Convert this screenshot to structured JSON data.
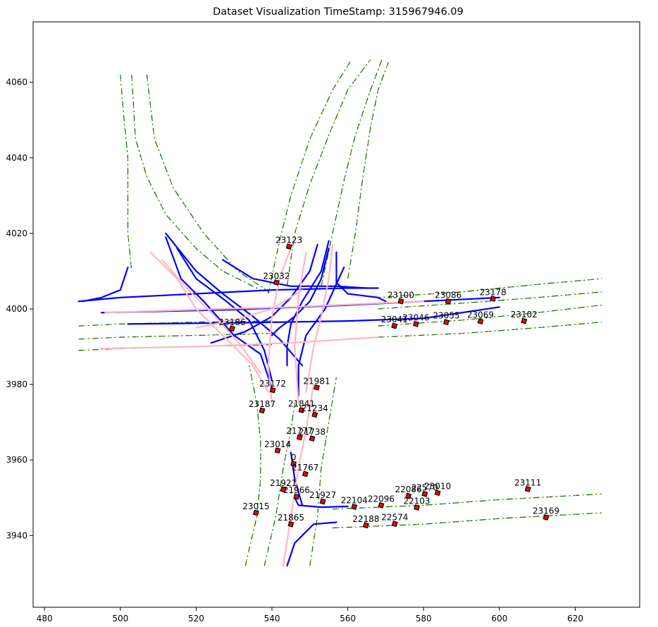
{
  "chart_data": {
    "type": "scatter",
    "title": "Dataset Visualization TimeStamp: 315967946.09",
    "xlabel": "",
    "ylabel": "",
    "xlim": [
      477,
      637
    ],
    "ylim": [
      3921,
      4076
    ],
    "xticks": [
      480,
      500,
      520,
      540,
      560,
      580,
      600,
      620
    ],
    "yticks": [
      3940,
      3960,
      3980,
      4000,
      4020,
      4040,
      4060
    ],
    "colors": {
      "lane_boundary": "#006400",
      "lane_marker": "#cccc00",
      "centerline_blue": "#0000ff",
      "centerline_pink": "#ffb6c1",
      "agent_fill": "#ff0000",
      "agent_edge": "#000000"
    },
    "agents": [
      {
        "id": "23123",
        "x": 544.5,
        "y": 4016.5
      },
      {
        "id": "23032",
        "x": 541.2,
        "y": 4007.0
      },
      {
        "id": "23186",
        "x": 529.5,
        "y": 3994.8
      },
      {
        "id": "23100",
        "x": 574.0,
        "y": 4002.0
      },
      {
        "id": "23086",
        "x": 586.5,
        "y": 4002.0
      },
      {
        "id": "23178",
        "x": 598.3,
        "y": 4002.7
      },
      {
        "id": "23041",
        "x": 572.3,
        "y": 3995.5
      },
      {
        "id": "23046",
        "x": 578.0,
        "y": 3996.0
      },
      {
        "id": "23055",
        "x": 586.0,
        "y": 3996.5
      },
      {
        "id": "23069",
        "x": 595.0,
        "y": 3996.7
      },
      {
        "id": "23102",
        "x": 606.5,
        "y": 3996.8
      },
      {
        "id": "23172",
        "x": 540.2,
        "y": 3978.5
      },
      {
        "id": "21981",
        "x": 551.8,
        "y": 3979.2
      },
      {
        "id": "23187",
        "x": 537.4,
        "y": 3973.1
      },
      {
        "id": "21841",
        "x": 547.8,
        "y": 3973.2
      },
      {
        "id": "21234",
        "x": 551.3,
        "y": 3972.0
      },
      {
        "id": "21777",
        "x": 547.3,
        "y": 3966.0
      },
      {
        "id": "21738",
        "x": 550.6,
        "y": 3965.7
      },
      {
        "id": "23014",
        "x": 541.5,
        "y": 3962.5
      },
      {
        "id": "0",
        "x": 545.7,
        "y": 3959.0
      },
      {
        "id": "21767",
        "x": 548.8,
        "y": 3956.3
      },
      {
        "id": "21921",
        "x": 543.0,
        "y": 3952.2
      },
      {
        "id": "21966",
        "x": 546.5,
        "y": 3950.3
      },
      {
        "id": "21927",
        "x": 553.4,
        "y": 3949.0
      },
      {
        "id": "22104",
        "x": 561.7,
        "y": 3947.6
      },
      {
        "id": "22096",
        "x": 568.8,
        "y": 3948.0
      },
      {
        "id": "22086",
        "x": 576.0,
        "y": 3950.5
      },
      {
        "id": "22570",
        "x": 580.3,
        "y": 3951.0
      },
      {
        "id": "23010",
        "x": 583.7,
        "y": 3951.3
      },
      {
        "id": "22103",
        "x": 578.2,
        "y": 3947.4
      },
      {
        "id": "23111",
        "x": 607.5,
        "y": 3952.3
      },
      {
        "id": "23015",
        "x": 535.8,
        "y": 3946.0
      },
      {
        "id": "21865",
        "x": 545.0,
        "y": 3943.0
      },
      {
        "id": "22188",
        "x": 564.8,
        "y": 3942.7
      },
      {
        "id": "22574",
        "x": 572.4,
        "y": 3943.1
      },
      {
        "id": "23169",
        "x": 612.3,
        "y": 3944.8
      }
    ],
    "blue_centerlines": [
      [
        [
          489,
          4002
        ],
        [
          500,
          4003
        ],
        [
          520,
          4004
        ],
        [
          540,
          4005
        ],
        [
          560,
          4005.5
        ],
        [
          568,
          4005.5
        ]
      ],
      [
        [
          495,
          3999
        ],
        [
          530,
          3999.8
        ],
        [
          560,
          4001
        ],
        [
          600,
          4003
        ]
      ],
      [
        [
          502,
          3996
        ],
        [
          530,
          3996.3
        ],
        [
          560,
          3996.8
        ],
        [
          580,
          3997.5
        ],
        [
          600,
          4000.5
        ]
      ],
      [
        [
          502,
          4011
        ],
        [
          500,
          4005
        ],
        [
          495,
          4003
        ],
        [
          490,
          4002
        ]
      ],
      [
        [
          512,
          4020
        ],
        [
          520,
          4010
        ],
        [
          527,
          4004
        ],
        [
          535,
          3998
        ],
        [
          542,
          3992
        ],
        [
          548,
          3985
        ]
      ],
      [
        [
          512,
          4019
        ],
        [
          516,
          4008
        ],
        [
          522,
          4002
        ],
        [
          530,
          3993
        ],
        [
          537,
          3988
        ],
        [
          540,
          3979
        ]
      ],
      [
        [
          527,
          4013
        ],
        [
          535,
          4008
        ],
        [
          545,
          4006
        ],
        [
          557,
          4006
        ],
        [
          565,
          4005.5
        ]
      ],
      [
        [
          552,
          4017
        ],
        [
          550,
          4010
        ],
        [
          545,
          4003
        ],
        [
          540,
          3998
        ],
        [
          533,
          3994
        ],
        [
          524,
          3991
        ]
      ],
      [
        [
          555,
          4018
        ],
        [
          553,
          4010
        ],
        [
          548,
          4002
        ],
        [
          545,
          3996
        ],
        [
          544,
          3990
        ],
        [
          544,
          3985
        ]
      ],
      [
        [
          557,
          4015
        ],
        [
          557,
          4007
        ],
        [
          560,
          4004
        ],
        [
          568,
          4003
        ],
        [
          570,
          4002
        ]
      ],
      [
        [
          555,
          4016
        ],
        [
          553,
          4008
        ],
        [
          550,
          4002
        ],
        [
          546,
          3998
        ],
        [
          542,
          3995
        ],
        [
          540,
          3993
        ]
      ],
      [
        [
          515,
          4016
        ],
        [
          520,
          4008
        ],
        [
          528,
          4002
        ],
        [
          534,
          3997
        ],
        [
          538,
          3989
        ],
        [
          540,
          3981
        ]
      ],
      [
        [
          559,
          4011
        ],
        [
          554,
          4000
        ],
        [
          549,
          3993
        ],
        [
          547,
          3985
        ],
        [
          547,
          3977
        ]
      ],
      [
        [
          546,
          3950
        ],
        [
          547,
          3948
        ],
        [
          553,
          3947.5
        ],
        [
          560,
          3947.7
        ]
      ],
      [
        [
          548,
          3948
        ],
        [
          546,
          3955
        ],
        [
          545,
          3962
        ]
      ],
      [
        [
          544,
          3932
        ],
        [
          546,
          3938
        ],
        [
          551,
          3943
        ],
        [
          557,
          3943.5
        ]
      ]
    ],
    "pink_centerlines": [
      [
        [
          496,
          3999
        ],
        [
          520,
          3999.8
        ],
        [
          545,
          4000.5
        ],
        [
          568,
          4001.5
        ],
        [
          580,
          4002
        ]
      ],
      [
        [
          495,
          3989.5
        ],
        [
          520,
          3990
        ],
        [
          545,
          3991
        ],
        [
          568,
          3992.5
        ]
      ],
      [
        [
          508,
          4015
        ],
        [
          515,
          4008
        ],
        [
          520,
          4000
        ],
        [
          528,
          3992
        ],
        [
          535,
          3985
        ],
        [
          539,
          3978
        ]
      ],
      [
        [
          511,
          4013
        ],
        [
          518,
          4005
        ],
        [
          526,
          3997
        ],
        [
          532,
          3990
        ],
        [
          537,
          3983
        ]
      ],
      [
        [
          520,
          3995
        ],
        [
          530,
          3997
        ],
        [
          540,
          4000
        ],
        [
          548,
          4005
        ]
      ],
      [
        [
          546,
          4019
        ],
        [
          542,
          4008
        ],
        [
          540,
          3998
        ],
        [
          539,
          3985
        ],
        [
          540,
          3975
        ]
      ],
      [
        [
          549,
          4015
        ],
        [
          547,
          4003
        ],
        [
          546,
          3990
        ],
        [
          547,
          3975
        ]
      ],
      [
        [
          556,
          4017
        ],
        [
          555,
          4008
        ],
        [
          553,
          3998
        ],
        [
          551,
          3990
        ],
        [
          549,
          3978
        ]
      ],
      [
        [
          543,
          3932
        ],
        [
          545,
          3945
        ],
        [
          547,
          3958
        ],
        [
          549,
          3968
        ],
        [
          551,
          3980
        ]
      ]
    ],
    "green_lanes": [
      [
        [
          500,
          4062
        ],
        [
          501,
          4050
        ],
        [
          502,
          4040
        ],
        [
          502,
          4030
        ],
        [
          502,
          4020
        ],
        [
          503,
          4010
        ]
      ],
      [
        [
          503,
          4062
        ],
        [
          504,
          4045
        ],
        [
          507,
          4035
        ],
        [
          512,
          4025
        ],
        [
          520,
          4016
        ],
        [
          527,
          4010
        ],
        [
          537,
          4005
        ]
      ],
      [
        [
          507,
          4062
        ],
        [
          509,
          4045
        ],
        [
          514,
          4032
        ],
        [
          522,
          4020
        ],
        [
          531,
          4010
        ],
        [
          540,
          4004
        ]
      ],
      [
        [
          539,
          4004
        ],
        [
          542,
          4018
        ],
        [
          545,
          4030
        ],
        [
          550,
          4045
        ],
        [
          556,
          4058
        ],
        [
          561,
          4066
        ]
      ],
      [
        [
          544,
          4006
        ],
        [
          546,
          4020
        ],
        [
          550,
          4033
        ],
        [
          555,
          4046
        ],
        [
          560,
          4058
        ],
        [
          566,
          4066
        ]
      ],
      [
        [
          553,
          4006
        ],
        [
          556,
          4020
        ],
        [
          559,
          4034
        ],
        [
          562,
          4046
        ],
        [
          566,
          4058
        ],
        [
          569,
          4066
        ]
      ],
      [
        [
          560,
          4008
        ],
        [
          562,
          4020
        ],
        [
          564,
          4035
        ],
        [
          566,
          4048
        ],
        [
          568,
          4058
        ],
        [
          571,
          4066
        ]
      ],
      [
        [
          567,
          4003
        ],
        [
          590,
          4004.5
        ],
        [
          610,
          4006.5
        ],
        [
          627,
          4008
        ]
      ],
      [
        [
          568,
          4000
        ],
        [
          590,
          4001.5
        ],
        [
          610,
          4003
        ],
        [
          627,
          4004.5
        ]
      ],
      [
        [
          568,
          3995.5
        ],
        [
          590,
          3997
        ],
        [
          610,
          3999
        ],
        [
          627,
          4001
        ]
      ],
      [
        [
          568,
          3992.5
        ],
        [
          590,
          3993.5
        ],
        [
          610,
          3995
        ],
        [
          627,
          3996.5
        ]
      ],
      [
        [
          489,
          3995.5
        ],
        [
          500,
          3996
        ],
        [
          520,
          3996.5
        ],
        [
          540,
          3996.8
        ]
      ],
      [
        [
          489,
          3992
        ],
        [
          500,
          3992.5
        ],
        [
          520,
          3993
        ],
        [
          540,
          3993.5
        ]
      ],
      [
        [
          489,
          3989
        ],
        [
          500,
          3989.5
        ],
        [
          520,
          3990
        ],
        [
          540,
          3990.5
        ]
      ],
      [
        [
          533,
          3932
        ],
        [
          536,
          3945
        ],
        [
          537,
          3955
        ],
        [
          537,
          3965
        ],
        [
          536,
          3975
        ],
        [
          534,
          3985
        ]
      ],
      [
        [
          538,
          3932
        ],
        [
          541,
          3945
        ],
        [
          543,
          3958
        ],
        [
          545,
          3968
        ],
        [
          546,
          3975
        ]
      ],
      [
        [
          550,
          3932
        ],
        [
          552,
          3945
        ],
        [
          553,
          3958
        ],
        [
          555,
          3970
        ],
        [
          557,
          3982
        ]
      ],
      [
        [
          556,
          3947
        ],
        [
          580,
          3948
        ],
        [
          600,
          3949.5
        ],
        [
          627,
          3951
        ]
      ],
      [
        [
          556,
          3942
        ],
        [
          580,
          3943
        ],
        [
          600,
          3944.5
        ],
        [
          627,
          3946
        ]
      ]
    ]
  }
}
